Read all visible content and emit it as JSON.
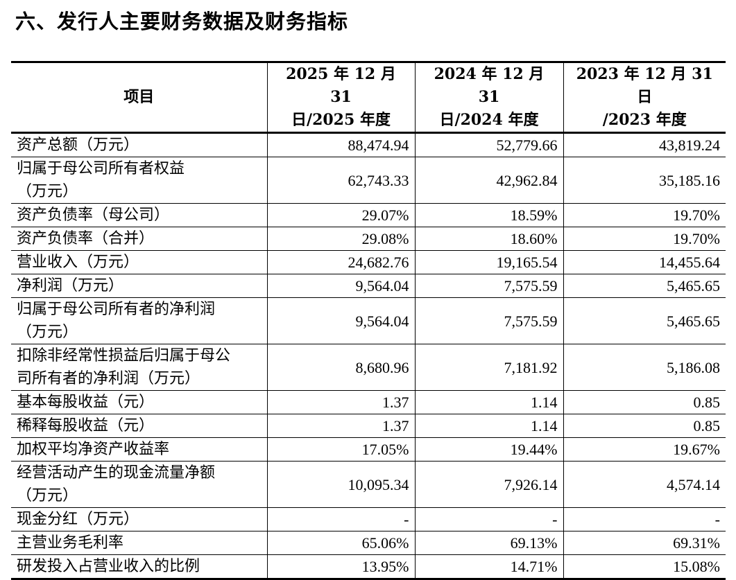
{
  "title": "六、发行人主要财务数据及财务指标",
  "table": {
    "headers": [
      {
        "lines": [
          "项目"
        ]
      },
      {
        "lines": [
          "2025 年 12 月 31",
          "日/2025 年度"
        ]
      },
      {
        "lines": [
          "2024 年 12 月 31",
          "日/2024 年度"
        ]
      },
      {
        "lines": [
          "2023 年 12 月 31 日",
          "/2023 年度"
        ]
      }
    ],
    "rows": [
      {
        "label": [
          "资产总额（万元）"
        ],
        "values": [
          "88,474.94",
          "52,779.66",
          "43,819.24"
        ]
      },
      {
        "label": [
          "归属于母公司所有者权益",
          "（万元）"
        ],
        "values": [
          "62,743.33",
          "42,962.84",
          "35,185.16"
        ]
      },
      {
        "label": [
          "资产负债率（母公司）"
        ],
        "values": [
          "29.07%",
          "18.59%",
          "19.70%"
        ]
      },
      {
        "label": [
          "资产负债率（合并）"
        ],
        "values": [
          "29.08%",
          "18.60%",
          "19.70%"
        ]
      },
      {
        "label": [
          "营业收入（万元）"
        ],
        "values": [
          "24,682.76",
          "19,165.54",
          "14,455.64"
        ]
      },
      {
        "label": [
          "净利润（万元）"
        ],
        "values": [
          "9,564.04",
          "7,575.59",
          "5,465.65"
        ]
      },
      {
        "label": [
          "归属于母公司所有者的净利润",
          "（万元）"
        ],
        "values": [
          "9,564.04",
          "7,575.59",
          "5,465.65"
        ]
      },
      {
        "label": [
          "扣除非经常性损益后归属于母公",
          "司所有者的净利润（万元）"
        ],
        "values": [
          "8,680.96",
          "7,181.92",
          "5,186.08"
        ]
      },
      {
        "label": [
          "基本每股收益（元）"
        ],
        "values": [
          "1.37",
          "1.14",
          "0.85"
        ]
      },
      {
        "label": [
          "稀释每股收益（元）"
        ],
        "values": [
          "1.37",
          "1.14",
          "0.85"
        ]
      },
      {
        "label": [
          "加权平均净资产收益率"
        ],
        "values": [
          "17.05%",
          "19.44%",
          "19.67%"
        ]
      },
      {
        "label": [
          "经营活动产生的现金流量净额",
          "（万元）"
        ],
        "values": [
          "10,095.34",
          "7,926.14",
          "4,574.14"
        ]
      },
      {
        "label": [
          "现金分红（万元）"
        ],
        "values": [
          "-",
          "-",
          "-"
        ]
      },
      {
        "label": [
          "主营业务毛利率"
        ],
        "values": [
          "65.06%",
          "69.13%",
          "69.31%"
        ]
      },
      {
        "label": [
          "研发投入占营业收入的比例"
        ],
        "values": [
          "13.95%",
          "14.71%",
          "15.08%"
        ]
      }
    ]
  }
}
